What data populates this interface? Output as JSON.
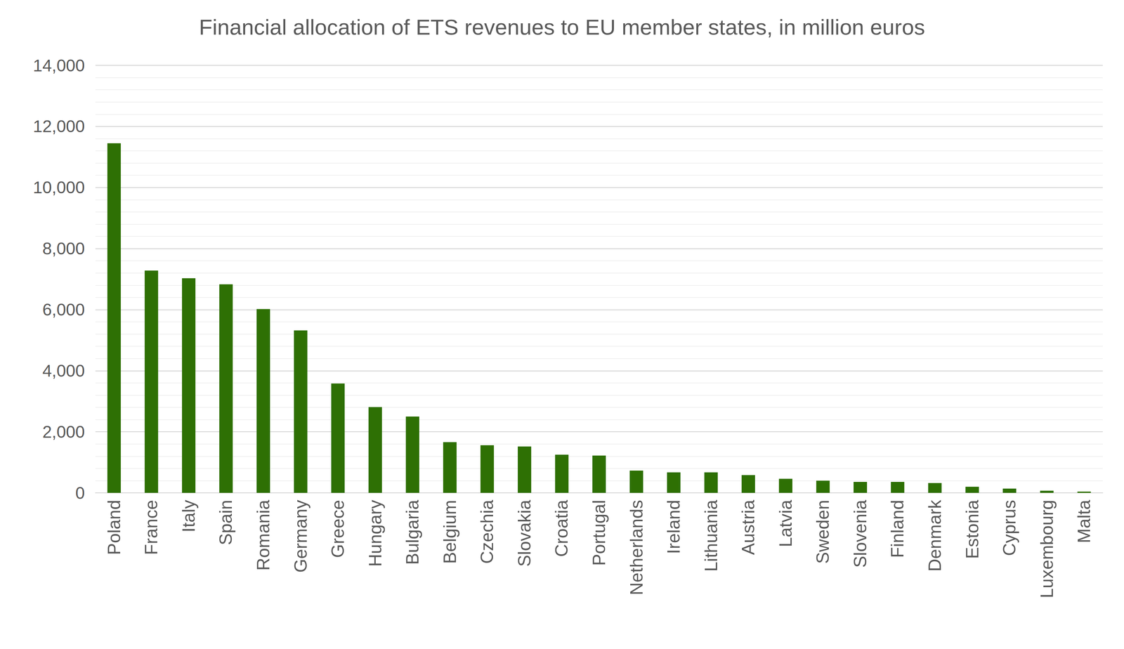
{
  "chart_data": {
    "type": "bar",
    "title": "Financial allocation of ETS revenues to EU member states, in million euros",
    "categories": [
      "Poland",
      "France",
      "Italy",
      "Spain",
      "Romania",
      "Germany",
      "Greece",
      "Hungary",
      "Bulgaria",
      "Belgium",
      "Czechia",
      "Slovakia",
      "Croatia",
      "Portugal",
      "Netherlands",
      "Ireland",
      "Lithuania",
      "Austria",
      "Latvia",
      "Sweden",
      "Slovenia",
      "Finland",
      "Denmark",
      "Estonia",
      "Cyprus",
      "Luxembourg",
      "Malta"
    ],
    "values": [
      11450,
      7280,
      7030,
      6830,
      6020,
      5320,
      3580,
      2810,
      2500,
      1660,
      1560,
      1520,
      1250,
      1220,
      730,
      670,
      670,
      580,
      460,
      400,
      360,
      360,
      320,
      200,
      140,
      70,
      40
    ],
    "color": "#2e7004",
    "ylim": [
      0,
      14000
    ],
    "yticks": [
      0,
      {
        "value": 2000,
        "label": "2,000"
      },
      {
        "value": 4000,
        "label": "4,000"
      },
      {
        "value": 6000,
        "label": "6,000"
      },
      {
        "value": 8000,
        "label": "8,000"
      },
      {
        "value": 10000,
        "label": "10,000"
      },
      {
        "value": 12000,
        "label": "12,000"
      },
      {
        "value": 14000,
        "label": "14,000"
      }
    ],
    "grid": true
  }
}
